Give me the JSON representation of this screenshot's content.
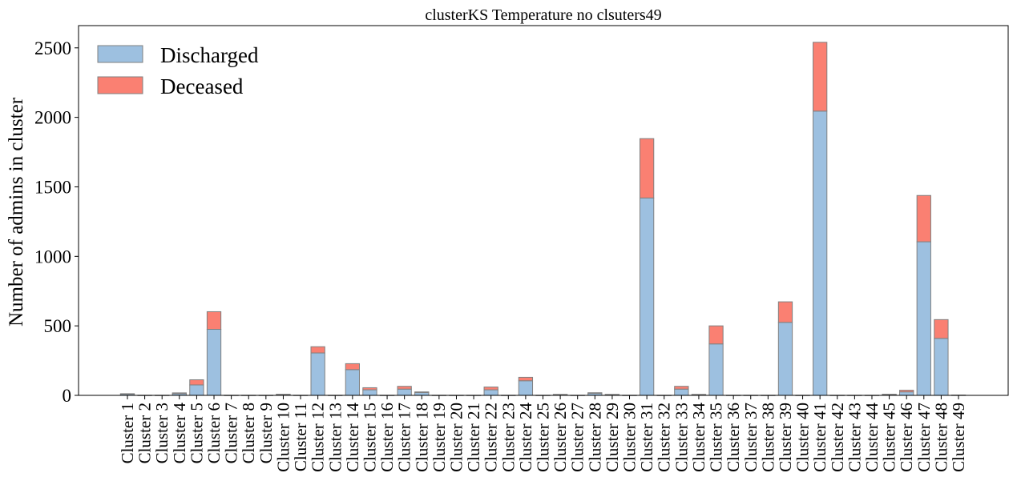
{
  "chart_data": {
    "type": "bar",
    "stacked": true,
    "title": "clusterKS Temperature no clsuters49",
    "xlabel": "",
    "ylabel": "Number of admins in cluster",
    "ylim": [
      0,
      2660
    ],
    "yticks": [
      0,
      500,
      1000,
      1500,
      2000,
      2500
    ],
    "grid": false,
    "legend_position": "top-left",
    "categories": [
      "Cluster 1",
      "Cluster 2",
      "Cluster 3",
      "Cluster 4",
      "Cluster 5",
      "Cluster 6",
      "Cluster 7",
      "Cluster 8",
      "Cluster 9",
      "Cluster 10",
      "Cluster 11",
      "Cluster 12",
      "Cluster 13",
      "Cluster 14",
      "Cluster 15",
      "Cluster 16",
      "Cluster 17",
      "Cluster 18",
      "Cluster 19",
      "Cluster 20",
      "Cluster 21",
      "Cluster 22",
      "Cluster 23",
      "Cluster 24",
      "Cluster 25",
      "Cluster 26",
      "Cluster 27",
      "Cluster 28",
      "Cluster 29",
      "Cluster 30",
      "Cluster 31",
      "Cluster 32",
      "Cluster 33",
      "Cluster 34",
      "Cluster 35",
      "Cluster 36",
      "Cluster 37",
      "Cluster 38",
      "Cluster 39",
      "Cluster 40",
      "Cluster 41",
      "Cluster 42",
      "Cluster 43",
      "Cluster 44",
      "Cluster 45",
      "Cluster 46",
      "Cluster 47",
      "Cluster 48",
      "Cluster 49"
    ],
    "series": [
      {
        "name": "Discharged",
        "color": "#9dc0e0",
        "values": [
          8,
          1,
          1,
          12,
          75,
          475,
          1,
          1,
          1,
          6,
          1,
          305,
          1,
          185,
          40,
          1,
          45,
          20,
          1,
          1,
          1,
          40,
          1,
          105,
          1,
          5,
          1,
          14,
          5,
          1,
          1420,
          1,
          45,
          5,
          370,
          1,
          1,
          1,
          525,
          1,
          2045,
          1,
          1,
          1,
          5,
          25,
          1105,
          410,
          2
        ]
      },
      {
        "name": "Deceased",
        "color": "#fa8072",
        "values": [
          4,
          0,
          0,
          6,
          37,
          127,
          0,
          0,
          0,
          2,
          0,
          45,
          0,
          43,
          15,
          0,
          20,
          5,
          0,
          0,
          0,
          20,
          0,
          25,
          0,
          2,
          0,
          5,
          2,
          0,
          427,
          0,
          20,
          2,
          130,
          0,
          0,
          0,
          148,
          0,
          495,
          0,
          0,
          0,
          3,
          12,
          333,
          135,
          0
        ]
      }
    ]
  }
}
